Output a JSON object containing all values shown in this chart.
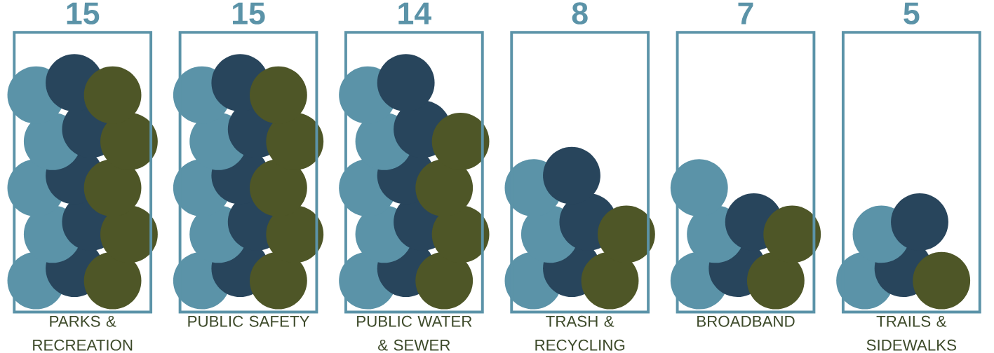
{
  "chart_data": {
    "type": "other",
    "categories": [
      "PARKS & RECREATION",
      "PUBLIC SAFETY",
      "PUBLIC WATER & SEWER",
      "TRASH & RECYCLING",
      "BROADBAND",
      "TRAILS & SIDEWALKS"
    ],
    "values": [
      15,
      15,
      14,
      8,
      7,
      5
    ],
    "color": "#5b93a8",
    "data_labels": true
  }
}
